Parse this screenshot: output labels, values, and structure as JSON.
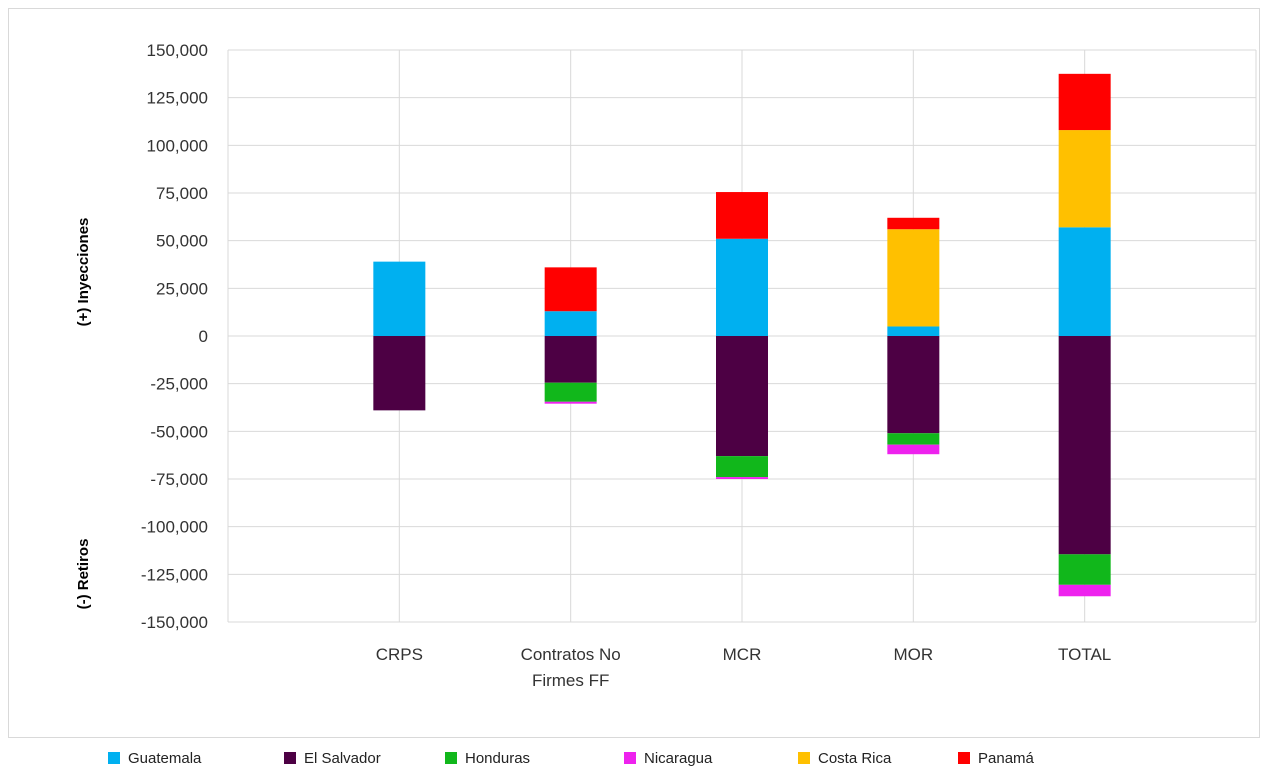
{
  "chart_data": {
    "type": "bar",
    "stacked": true,
    "categories": [
      [
        "CRPS"
      ],
      [
        "Contratos No",
        "Firmes FF"
      ],
      [
        "MCR"
      ],
      [
        "MOR"
      ],
      [
        "TOTAL"
      ]
    ],
    "ylim": [
      -150000,
      150000
    ],
    "yticks": [
      -150000,
      -125000,
      -100000,
      -75000,
      -50000,
      -25000,
      0,
      25000,
      50000,
      75000,
      100000,
      125000,
      150000
    ],
    "ytick_labels": [
      "-150,000",
      "-125,000",
      "-100,000",
      "-75,000",
      "-50,000",
      "-25,000",
      "0",
      "25,000",
      "50,000",
      "75,000",
      "100,000",
      "125,000",
      "150,000"
    ],
    "ylabel_top": "(+) Inyecciones",
    "ylabel_bottom": "(-) Retiros",
    "grid": true,
    "legend_position": "bottom",
    "series": [
      {
        "name": "Guatemala",
        "color": "#00b0f0",
        "values": [
          39000,
          13000,
          51000,
          5000,
          57000
        ]
      },
      {
        "name": "El Salvador",
        "color": "#4d0044",
        "values": [
          -39000,
          -24500,
          -63000,
          -51000,
          -114500
        ]
      },
      {
        "name": "Honduras",
        "color": "#11b71b",
        "values": [
          0,
          -10000,
          -11000,
          -6000,
          -16000
        ]
      },
      {
        "name": "Nicaragua",
        "color": "#ee22ee",
        "values": [
          0,
          -1000,
          -1000,
          -5000,
          -6000
        ]
      },
      {
        "name": "Costa Rica",
        "color": "#ffc000",
        "values": [
          0,
          0,
          0,
          51000,
          51000
        ]
      },
      {
        "name": "Panamá",
        "color": "#ff0000",
        "values": [
          0,
          23000,
          24500,
          6000,
          29500
        ]
      }
    ]
  }
}
